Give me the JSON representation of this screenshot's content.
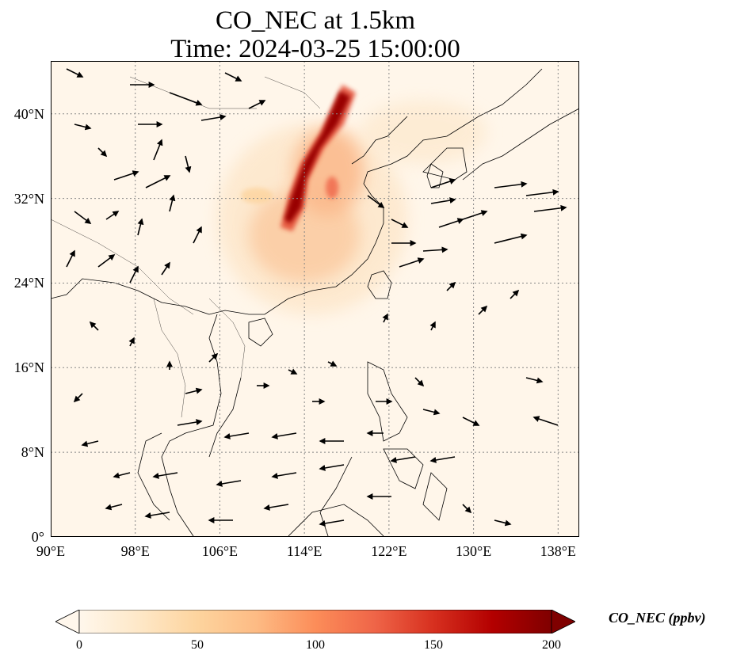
{
  "title": {
    "line1": "CO_NEC at 1.5km",
    "line2": "Time: 2024-03-25 15:00:00"
  },
  "map": {
    "lon_range": [
      90,
      140
    ],
    "lat_range": [
      0,
      45
    ],
    "lat_ticks": [
      {
        "value": 0,
        "label": "0°"
      },
      {
        "value": 8,
        "label": "8°N"
      },
      {
        "value": 16,
        "label": "16°N"
      },
      {
        "value": 24,
        "label": "24°N"
      },
      {
        "value": 32,
        "label": "32°N"
      },
      {
        "value": 40,
        "label": "40°N"
      }
    ],
    "lon_ticks": [
      {
        "value": 90,
        "label": "90°E"
      },
      {
        "value": 98,
        "label": "98°E"
      },
      {
        "value": 106,
        "label": "106°E"
      },
      {
        "value": 114,
        "label": "114°E"
      },
      {
        "value": 122,
        "label": "122°E"
      },
      {
        "value": 130,
        "label": "130°E"
      },
      {
        "value": 138,
        "label": "138°E"
      }
    ],
    "gridlines": true,
    "colormap": "OrRd"
  },
  "colorbar": {
    "label": "CO_NEC (ppbv)",
    "min": 0,
    "max": 200,
    "ticks": [
      "0",
      "50",
      "100",
      "150",
      "200"
    ],
    "extend": "both",
    "colors": [
      "#fff7ec",
      "#fee8c8",
      "#fdd49e",
      "#fdbb84",
      "#fc8d59",
      "#ef6548",
      "#d7301f",
      "#b30000",
      "#7f0000"
    ]
  }
}
